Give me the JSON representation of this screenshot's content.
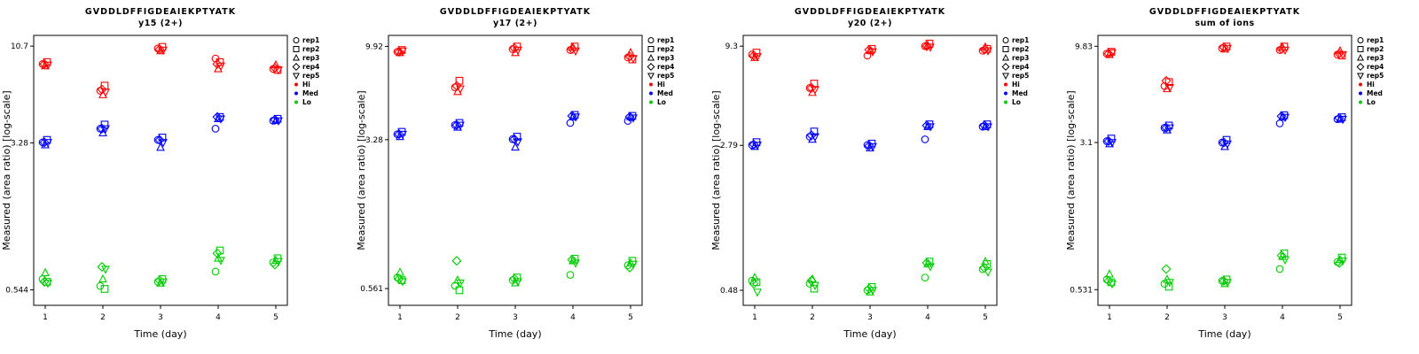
{
  "page": {
    "background": "#ffffff"
  },
  "legend": {
    "reps": [
      {
        "label": "rep1",
        "marker": "circle"
      },
      {
        "label": "rep2",
        "marker": "square"
      },
      {
        "label": "rep3",
        "marker": "triangle-up"
      },
      {
        "label": "rep4",
        "marker": "diamond"
      },
      {
        "label": "rep5",
        "marker": "triangle-down"
      }
    ],
    "levels": [
      {
        "label": "Hi",
        "color": "#FF0000"
      },
      {
        "label": "Med",
        "color": "#0000FF"
      },
      {
        "label": "Lo",
        "color": "#00CC00"
      }
    ]
  },
  "chart_data": [
    {
      "type": "scatter",
      "title": "GVDDLDFFIGDEAIEKPTYATK",
      "subtitle": "y15 (2+)",
      "xlabel": "Time (day)",
      "ylabel": "Measured (area ratio) [log-scale]",
      "x_ticks": [
        1,
        2,
        3,
        4,
        5
      ],
      "xlim": [
        0.8,
        5.2
      ],
      "yscale": "log",
      "ylim": [
        0.45,
        12.2
      ],
      "y_ticks": [
        {
          "label": "10.7",
          "value": 10.7
        },
        {
          "label": "3.28",
          "value": 3.28
        },
        {
          "label": "0.544",
          "value": 0.544
        }
      ],
      "series": [
        {
          "name": "Hi",
          "color": "#FF0000",
          "values_by_day": [
            [
              8.6,
              8.8,
              8.4,
              8.6,
              8.5
            ],
            [
              6.2,
              6.6,
              5.9,
              6.3,
              6.1
            ],
            [
              10.4,
              10.6,
              10.1,
              10.3,
              10.2
            ],
            [
              9.2,
              8.8,
              8.1,
              8.6,
              8.4
            ],
            [
              8.1,
              8.0,
              8.5,
              8.2,
              8.0
            ]
          ]
        },
        {
          "name": "Med",
          "color": "#0000FF",
          "values_by_day": [
            [
              3.3,
              3.4,
              3.2,
              3.3,
              3.3
            ],
            [
              3.9,
              4.1,
              3.7,
              3.9,
              3.9
            ],
            [
              3.4,
              3.5,
              3.1,
              3.4,
              3.3
            ],
            [
              3.9,
              4.5,
              4.4,
              4.5,
              4.4
            ],
            [
              4.3,
              4.4,
              4.3,
              4.35,
              4.3
            ]
          ]
        },
        {
          "name": "Lo",
          "color": "#00CC00",
          "values_by_day": [
            [
              0.62,
              0.6,
              0.67,
              0.6,
              0.59
            ],
            [
              0.57,
              0.55,
              0.62,
              0.72,
              0.7
            ],
            [
              0.6,
              0.62,
              0.59,
              0.61,
              0.6
            ],
            [
              0.68,
              0.88,
              0.8,
              0.85,
              0.78
            ],
            [
              0.76,
              0.8,
              0.78,
              0.74,
              0.77
            ]
          ]
        }
      ]
    },
    {
      "type": "scatter",
      "title": "GVDDLDFFIGDEAIEKPTYATK",
      "subtitle": "y17 (2+)",
      "xlabel": "Time (day)",
      "ylabel": "Measured (area ratio) [log-scale]",
      "x_ticks": [
        1,
        2,
        3,
        4,
        5
      ],
      "xlim": [
        0.8,
        5.2
      ],
      "yscale": "log",
      "ylim": [
        0.46,
        11.3
      ],
      "y_ticks": [
        {
          "label": "9.92",
          "value": 9.92
        },
        {
          "label": "3.28",
          "value": 3.28
        },
        {
          "label": "0.561",
          "value": 0.561
        }
      ],
      "series": [
        {
          "name": "Hi",
          "color": "#FF0000",
          "values_by_day": [
            [
              9.3,
              9.5,
              9.2,
              9.3,
              9.4
            ],
            [
              6.1,
              6.6,
              5.8,
              6.2,
              6.0
            ],
            [
              9.6,
              9.9,
              9.2,
              9.7,
              9.5
            ],
            [
              9.5,
              9.9,
              9.8,
              9.6,
              9.4
            ],
            [
              8.7,
              8.5,
              9.2,
              8.8,
              8.6
            ]
          ]
        },
        {
          "name": "Med",
          "color": "#0000FF",
          "values_by_day": [
            [
              3.5,
              3.6,
              3.4,
              3.5,
              3.5
            ],
            [
              3.9,
              4.0,
              3.8,
              3.9,
              3.9
            ],
            [
              3.3,
              3.4,
              3.0,
              3.3,
              3.2
            ],
            [
              4.0,
              4.4,
              4.3,
              4.35,
              4.3
            ],
            [
              4.1,
              4.35,
              4.3,
              4.3,
              4.25
            ]
          ]
        },
        {
          "name": "Lo",
          "color": "#00CC00",
          "values_by_day": [
            [
              0.64,
              0.62,
              0.68,
              0.63,
              0.61
            ],
            [
              0.58,
              0.55,
              0.62,
              0.78,
              0.6
            ],
            [
              0.62,
              0.64,
              0.6,
              0.63,
              0.61
            ],
            [
              0.66,
              0.8,
              0.78,
              0.79,
              0.76
            ],
            [
              0.74,
              0.78,
              0.76,
              0.72,
              0.75
            ]
          ]
        }
      ]
    },
    {
      "type": "scatter",
      "title": "GVDDLDFFIGDEAIEKPTYATK",
      "subtitle": "y20 (2+)",
      "xlabel": "Time (day)",
      "ylabel": "Measured (area ratio) [log-scale]",
      "x_ticks": [
        1,
        2,
        3,
        4,
        5
      ],
      "xlim": [
        0.8,
        5.2
      ],
      "yscale": "log",
      "ylim": [
        0.4,
        10.6
      ],
      "y_ticks": [
        {
          "label": "9.3",
          "value": 9.3
        },
        {
          "label": "2.79",
          "value": 2.79
        },
        {
          "label": "0.48",
          "value": 0.48
        }
      ],
      "series": [
        {
          "name": "Hi",
          "color": "#FF0000",
          "values_by_day": [
            [
              8.4,
              8.6,
              8.1,
              8.3,
              8.2
            ],
            [
              5.6,
              5.9,
              5.3,
              5.6,
              5.5
            ],
            [
              8.3,
              9.0,
              8.8,
              8.9,
              8.7
            ],
            [
              9.3,
              9.6,
              9.4,
              9.3,
              9.2
            ],
            [
              8.8,
              9.0,
              9.2,
              8.9,
              8.8
            ]
          ]
        },
        {
          "name": "Med",
          "color": "#0000FF",
          "values_by_day": [
            [
              2.8,
              2.9,
              2.75,
              2.82,
              2.8
            ],
            [
              3.1,
              3.3,
              3.0,
              3.15,
              3.1
            ],
            [
              2.8,
              2.85,
              2.7,
              2.78,
              2.75
            ],
            [
              3.0,
              3.6,
              3.5,
              3.55,
              3.5
            ],
            [
              3.5,
              3.6,
              3.5,
              3.55,
              3.5
            ]
          ]
        },
        {
          "name": "Lo",
          "color": "#00CC00",
          "values_by_day": [
            [
              0.54,
              0.53,
              0.56,
              0.52,
              0.47
            ],
            [
              0.52,
              0.49,
              0.55,
              0.54,
              0.51
            ],
            [
              0.48,
              0.5,
              0.47,
              0.49,
              0.48
            ],
            [
              0.56,
              0.68,
              0.66,
              0.67,
              0.64
            ],
            [
              0.62,
              0.66,
              0.68,
              0.63,
              0.6
            ]
          ]
        }
      ]
    },
    {
      "type": "scatter",
      "title": "GVDDLDFFIGDEAIEKPTYATK",
      "subtitle": "sum of ions",
      "xlabel": "Time (day)",
      "ylabel": "Measured (area ratio) [log-scale]",
      "x_ticks": [
        1,
        2,
        3,
        4,
        5
      ],
      "xlim": [
        0.8,
        5.2
      ],
      "yscale": "log",
      "ylim": [
        0.44,
        11.2
      ],
      "y_ticks": [
        {
          "label": "9.83",
          "value": 9.83
        },
        {
          "label": "3.1",
          "value": 3.1
        },
        {
          "label": "0.531",
          "value": 0.531
        }
      ],
      "series": [
        {
          "name": "Hi",
          "color": "#FF0000",
          "values_by_day": [
            [
              9.0,
              9.2,
              8.9,
              9.0,
              9.1
            ],
            [
              6.1,
              6.4,
              5.9,
              6.5,
              6.0
            ],
            [
              9.6,
              9.8,
              9.5,
              9.7,
              9.6
            ],
            [
              9.4,
              9.8,
              9.7,
              9.5,
              9.4
            ],
            [
              8.9,
              8.8,
              9.3,
              9.0,
              8.9
            ]
          ]
        },
        {
          "name": "Med",
          "color": "#0000FF",
          "values_by_day": [
            [
              3.15,
              3.25,
              3.05,
              3.15,
              3.1
            ],
            [
              3.7,
              3.8,
              3.6,
              3.7,
              3.7
            ],
            [
              3.1,
              3.2,
              2.95,
              3.1,
              3.05
            ],
            [
              3.9,
              4.3,
              4.2,
              4.25,
              4.2
            ],
            [
              4.1,
              4.2,
              4.1,
              4.15,
              4.1
            ]
          ]
        },
        {
          "name": "Lo",
          "color": "#00CC00",
          "values_by_day": [
            [
              0.6,
              0.58,
              0.64,
              0.59,
              0.57
            ],
            [
              0.57,
              0.55,
              0.6,
              0.68,
              0.58
            ],
            [
              0.59,
              0.6,
              0.57,
              0.59,
              0.58
            ],
            [
              0.68,
              0.82,
              0.79,
              0.8,
              0.76
            ],
            [
              0.74,
              0.78,
              0.76,
              0.73,
              0.75
            ]
          ]
        }
      ]
    }
  ]
}
